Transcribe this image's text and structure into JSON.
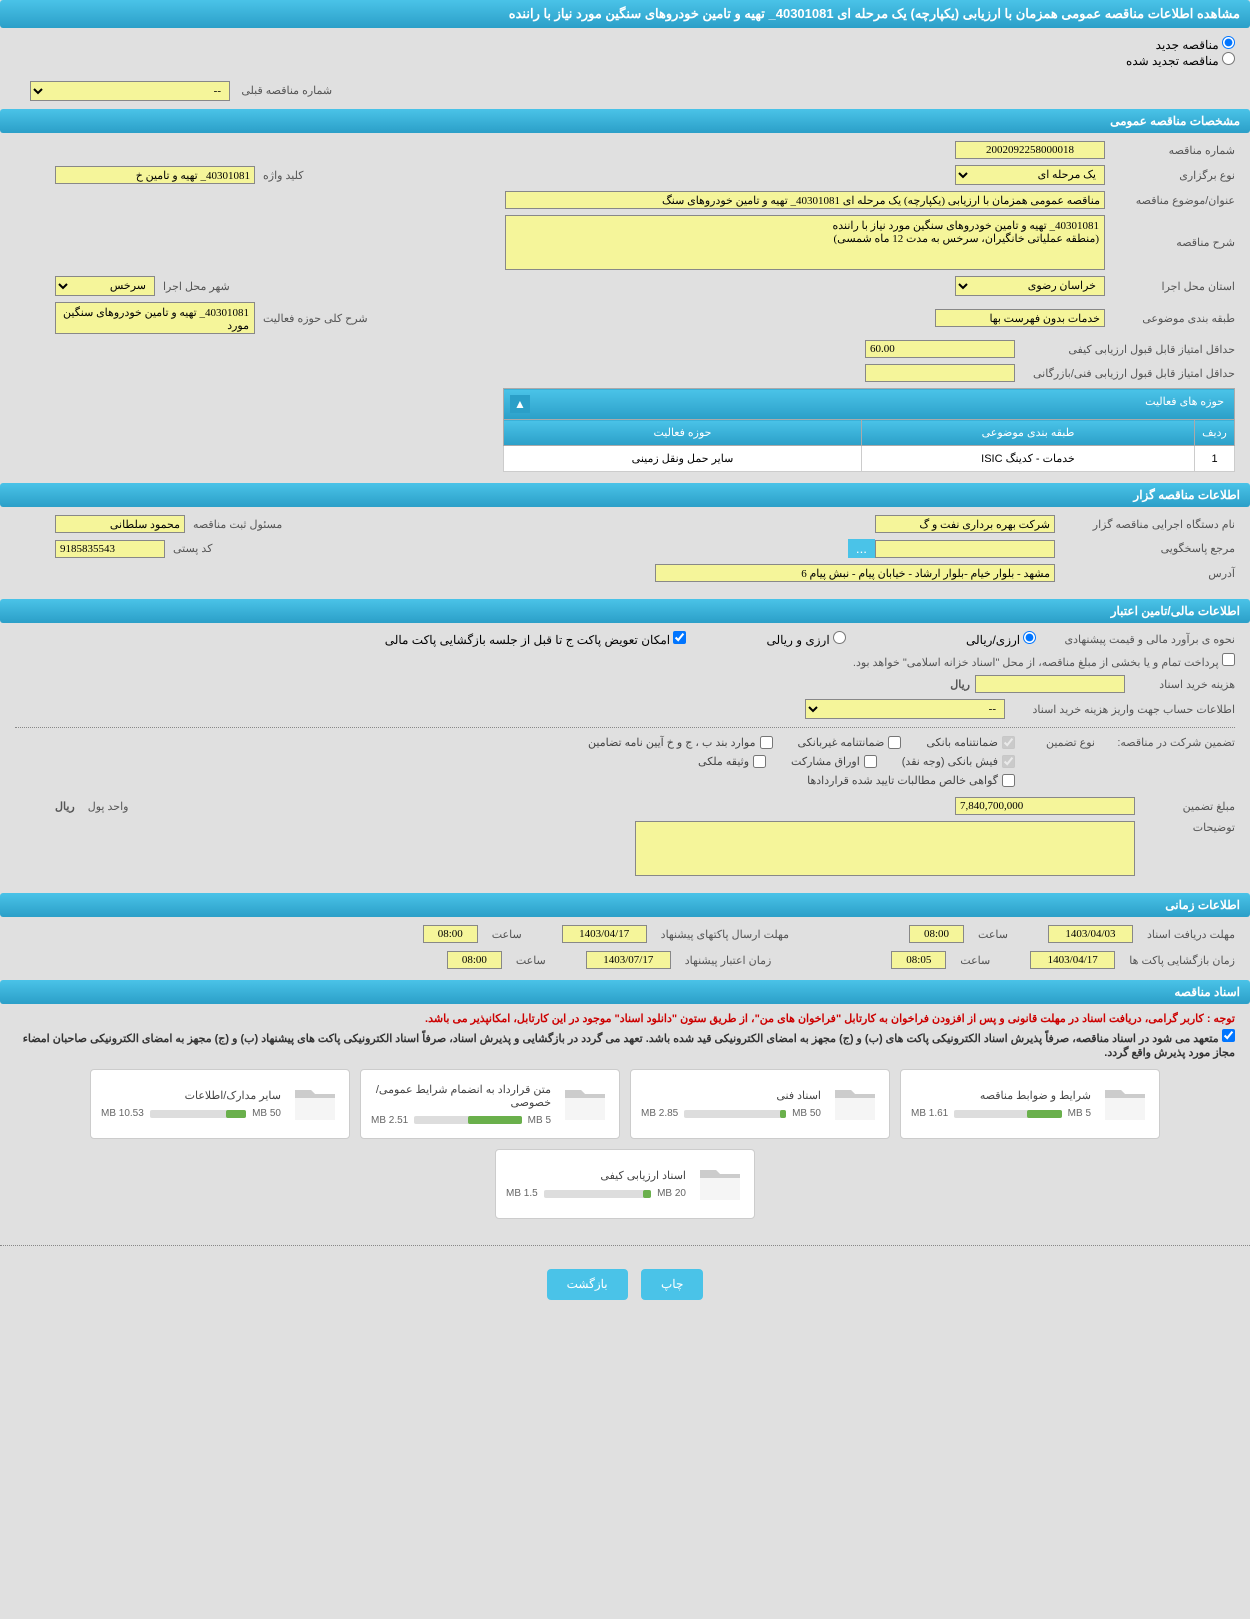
{
  "header": {
    "title": "مشاهده اطلاعات مناقصه عمومی همزمان با ارزیابی (یکپارچه) یک مرحله ای 40301081_ تهیه و تامین خودروهای سنگین مورد نیاز با راننده"
  },
  "tender_type": {
    "new_label": "مناقصه جدید",
    "renewed_label": "مناقصه تجدید شده"
  },
  "prev_tender": {
    "label": "شماره مناقصه قبلی",
    "value": "--"
  },
  "sections": {
    "general": "مشخصات مناقصه عمومی",
    "organizer": "اطلاعات مناقصه گزار",
    "financial": "اطلاعات مالی/تامین اعتبار",
    "timing": "اطلاعات زمانی",
    "documents": "اسناد مناقصه"
  },
  "general": {
    "tender_number_label": "شماره مناقصه",
    "tender_number": "2002092258000018",
    "type_label": "نوع برگزاری",
    "type": "یک مرحله ای",
    "keyword_label": "کلید واژه",
    "keyword": "40301081_ تهیه و تامین خ",
    "subject_label": "عنوان/موضوع مناقصه",
    "subject": "مناقصه عمومی همزمان با ارزیابی (یکپارچه) یک مرحله ای 40301081_ تهیه و تامین خودروهای سنگ",
    "description_label": "شرح مناقصه",
    "description": "40301081_ تهیه و تامین خودروهای سنگین مورد نیاز با راننده\n(منطقه عملیاتی خانگیران، سرخس به مدت 12 ماه شمسی)",
    "province_label": "استان محل اجرا",
    "province": "خراسان رضوی",
    "city_label": "شهر محل اجرا",
    "city": "سرخس",
    "category_label": "طبقه بندی موضوعی",
    "category": "خدمات بدون فهرست بها",
    "activity_desc_label": "شرح کلی حوزه فعالیت",
    "activity_desc": "40301081_ تهیه و تامین خودروهای سنگین مورد",
    "min_quality_label": "حداقل امتیاز قابل قبول ارزیابی کیفی",
    "min_quality": "60.00",
    "min_technical_label": "حداقل امتیاز قابل قبول ارزیابی فنی/بازرگانی",
    "min_technical": ""
  },
  "activity_table": {
    "header": "حوزه های فعالیت",
    "col_row": "ردیف",
    "col_category": "طبقه بندی موضوعی",
    "col_field": "حوزه فعالیت",
    "row1_num": "1",
    "row1_cat": "خدمات - کدینگ ISIC",
    "row1_field": "سایر حمل ونقل زمینی"
  },
  "organizer": {
    "agency_label": "نام دستگاه اجرایی مناقصه گزار",
    "agency": "شرکت بهره برداری نفت و گ",
    "registrar_label": "مسئول ثبت مناقصه",
    "registrar": "محمود سلطانی",
    "response_ref_label": "مرجع پاسخگویی",
    "response_ref": "",
    "postal_label": "کد پستی",
    "postal": "9185835543",
    "address_label": "آدرس",
    "address": "مشهد - بلوار خیام -بلوار ارشاد - خیابان پیام - نبش پیام 6"
  },
  "financial": {
    "estimate_method_label": "نحوه ی برآورد مالی و قیمت پیشنهادی",
    "opt_rial": "ارزی/ریالی",
    "opt_currency": "ارزی و ریالی",
    "exchange_label": "امکان تعویض پاکت ج تا قبل از جلسه بازگشایی پاکت مالی",
    "payment_note": "پرداخت تمام و یا بخشی از مبلغ مناقصه، از محل \"اسناد خزانه اسلامی\" خواهد بود.",
    "doc_cost_label": "هزینه خرید اسناد",
    "doc_cost": "",
    "currency_unit": "ریال",
    "account_info_label": "اطلاعات حساب جهت واریز هزینه خرید اسناد",
    "account_info": "--",
    "guarantee_label": "تضمین شرکت در مناقصه:",
    "guarantee_type_label": "نوع تضمین",
    "chk_bank_guarantee": "ضمانتنامه بانکی",
    "chk_nonbank_guarantee": "ضمانتنامه غیربانکی",
    "chk_regulation": "موارد بند ب ، ج و خ آیین نامه تضامین",
    "chk_bank_receipt": "فیش بانکی (وجه نقد)",
    "chk_securities": "اوراق مشارکت",
    "chk_property": "وثیقه ملکی",
    "chk_contract_claims": "گواهی خالص مطالبات تایید شده قراردادها",
    "amount_label": "مبلغ تضمین",
    "amount": "7,840,700,000",
    "currency_label": "واحد پول",
    "currency": "ریال",
    "notes_label": "توضیحات",
    "notes": ""
  },
  "timing": {
    "doc_deadline_label": "مهلت دریافت اسناد",
    "doc_deadline_date": "1403/04/03",
    "time_label": "ساعت",
    "doc_deadline_time": "08:00",
    "send_deadline_label": "مهلت ارسال پاکتهای پیشنهاد",
    "send_deadline_date": "1403/04/17",
    "send_deadline_time": "08:00",
    "opening_label": "زمان بازگشایی پاکت ها",
    "opening_date": "1403/04/17",
    "opening_time": "08:05",
    "validity_label": "زمان اعتبار پیشنهاد",
    "validity_date": "1403/07/17",
    "validity_time": "08:00"
  },
  "documents": {
    "note1": "توجه : کاربر گرامی، دریافت اسناد در مهلت قانونی و پس از افزودن فراخوان به کارتابل \"فراخوان های من\"، از طریق ستون \"دانلود اسناد\" موجود در این کارتابل، امکانپذیر می باشد.",
    "note2_part1": "متعهد می شود در اسناد مناقصه، صرفاً پذیرش اسناد الکترونیکی پاکت های (ب) و (ج) مجهز به امضای الکترونیکی قید شده باشد. تعهد می گردد در بازگشایی و پذیرش اسناد، صرفاً اسناد الکترونیکی پاکت های پیشنهاد (ب) و (ج) مجهز به امضای الکترونیکی صاحبان امضاء مجاز مورد پذیرش واقع گردد.",
    "files": [
      {
        "title": "شرایط و ضوابط مناقصه",
        "used": "1.61 MB",
        "total": "5 MB",
        "pct": 32
      },
      {
        "title": "اسناد فنی",
        "used": "2.85 MB",
        "total": "50 MB",
        "pct": 6
      },
      {
        "title": "متن قرارداد به انضمام شرایط عمومی/خصوصی",
        "used": "2.51 MB",
        "total": "5 MB",
        "pct": 50
      },
      {
        "title": "سایر مدارک/اطلاعات",
        "used": "10.53 MB",
        "total": "50 MB",
        "pct": 21
      },
      {
        "title": "اسناد ارزیابی کیفی",
        "used": "1.5 MB",
        "total": "20 MB",
        "pct": 8
      }
    ]
  },
  "buttons": {
    "print": "چاپ",
    "back": "بازگشت",
    "ellipsis": "..."
  }
}
